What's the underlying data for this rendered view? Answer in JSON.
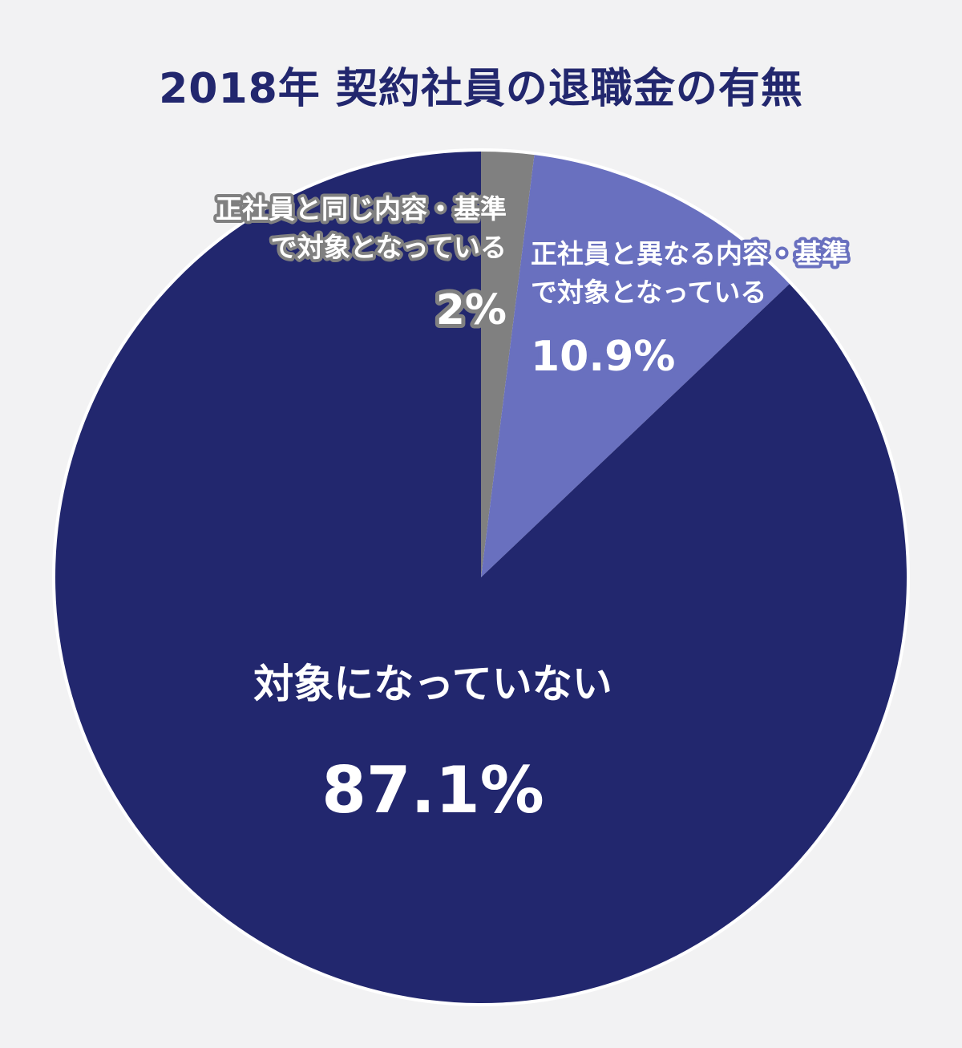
{
  "title": "2018年 契約社員の退職金の有無",
  "chart_data": {
    "type": "pie",
    "title": "2018年 契約社員の退職金の有無",
    "start": "top",
    "direction": "clockwise",
    "slices": [
      {
        "label_lines": [
          "対象になっていない"
        ],
        "value": 87.1,
        "value_label": "87.1%",
        "color": "#22276e",
        "label_color": "#ffffff",
        "label_outline": ""
      },
      {
        "label_lines": [
          "正社員と同じ内容・基準",
          "で対象となっている"
        ],
        "value": 2,
        "value_label": "2%",
        "color": "#808080",
        "label_color": "#ffffff",
        "label_outline": "#808080"
      },
      {
        "label_lines": [
          "正社員と異なる内容・基準",
          "で対象となっている"
        ],
        "value": 10.9,
        "value_label": "10.9%",
        "color": "#6970bf",
        "label_color": "#ffffff",
        "label_outline": "#6970bf"
      }
    ]
  }
}
